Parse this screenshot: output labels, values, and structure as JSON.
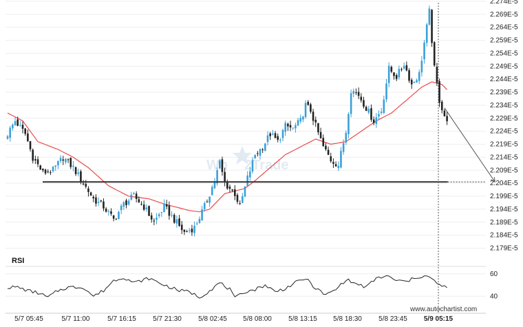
{
  "chart_data": [
    {
      "type": "candlestick",
      "title": "",
      "ylabel": "",
      "ylim": [
        2.1765e-05,
        2.2745e-05
      ],
      "y_tick_labels": [
        "2.274E-5",
        "2.269E-5",
        "2.264E-5",
        "2.259E-5",
        "2.254E-5",
        "2.249E-5",
        "2.244E-5",
        "2.239E-5",
        "2.234E-5",
        "2.229E-5",
        "2.224E-5",
        "2.219E-5",
        "2.214E-5",
        "2.209E-5",
        "2.204E-5",
        "2.199E-5",
        "2.194E-5",
        "2.189E-5",
        "2.184E-5",
        "2.179E-5"
      ],
      "y_tick_values": [
        2.274e-05,
        2.269e-05,
        2.264e-05,
        2.259e-05,
        2.254e-05,
        2.249e-05,
        2.244e-05,
        2.239e-05,
        2.234e-05,
        2.229e-05,
        2.224e-05,
        2.219e-05,
        2.214e-05,
        2.209e-05,
        2.204e-05,
        2.199e-05,
        2.194e-05,
        2.189e-05,
        2.184e-05,
        2.179e-05
      ],
      "x_tick_labels": [
        "5/7 05:45",
        "5/7 11:00",
        "5/7 16:15",
        "5/7 21:30",
        "5/8 02:45",
        "5/8 08:00",
        "5/8 13:15",
        "5/8 18:30",
        "5/8 23:45",
        "5/9 05:15"
      ],
      "current_time_label": "5/9 05:15",
      "support_level": 2.2045e-05,
      "support_label": "2.204E-5",
      "colors": {
        "bull": "#3a9fd8",
        "bear": "#222222",
        "ma": "#e8494a",
        "level": "#333333",
        "grid": "#eeeeee"
      },
      "anchors_close": [
        [
          0,
          2.223e-05
        ],
        [
          3,
          2.228e-05
        ],
        [
          7,
          2.223e-05
        ],
        [
          10,
          2.214e-05
        ],
        [
          14,
          2.208e-05
        ],
        [
          18,
          2.209e-05
        ],
        [
          22,
          2.214e-05
        ],
        [
          26,
          2.21e-05
        ],
        [
          30,
          2.204e-05
        ],
        [
          34,
          2.198e-05
        ],
        [
          38,
          2.195e-05
        ],
        [
          42,
          2.19e-05
        ],
        [
          46,
          2.196e-05
        ],
        [
          50,
          2.199e-05
        ],
        [
          54,
          2.195e-05
        ],
        [
          58,
          2.189e-05
        ],
        [
          62,
          2.195e-05
        ],
        [
          66,
          2.19e-05
        ],
        [
          70,
          2.185e-05
        ],
        [
          74,
          2.187e-05
        ],
        [
          78,
          2.195e-05
        ],
        [
          82,
          2.205e-05
        ],
        [
          84,
          2.212e-05
        ],
        [
          86,
          2.204e-05
        ],
        [
          90,
          2.2e-05
        ],
        [
          92,
          2.195e-05
        ],
        [
          95,
          2.206e-05
        ],
        [
          98,
          2.215e-05
        ],
        [
          101,
          2.218e-05
        ],
        [
          104,
          2.223e-05
        ],
        [
          107,
          2.22e-05
        ],
        [
          110,
          2.226e-05
        ],
        [
          113,
          2.225e-05
        ],
        [
          116,
          2.228e-05
        ],
        [
          118,
          2.234e-05
        ],
        [
          120,
          2.232e-05
        ],
        [
          122,
          2.226e-05
        ],
        [
          125,
          2.218e-05
        ],
        [
          128,
          2.213e-05
        ],
        [
          131,
          2.211e-05
        ],
        [
          134,
          2.224e-05
        ],
        [
          136,
          2.24e-05
        ],
        [
          139,
          2.238e-05
        ],
        [
          142,
          2.233e-05
        ],
        [
          145,
          2.228e-05
        ],
        [
          148,
          2.232e-05
        ],
        [
          151,
          2.248e-05
        ],
        [
          154,
          2.245e-05
        ],
        [
          157,
          2.25e-05
        ],
        [
          160,
          2.242e-05
        ],
        [
          163,
          2.246e-05
        ],
        [
          166,
          2.264e-05
        ],
        [
          167,
          2.27e-05
        ],
        [
          169,
          2.248e-05
        ],
        [
          171,
          2.236e-05
        ],
        [
          173,
          2.23e-05
        ],
        [
          174,
          2.227e-05
        ]
      ],
      "ma_anchors": [
        [
          0,
          2.231e-05
        ],
        [
          6,
          2.228e-05
        ],
        [
          12,
          2.22e-05
        ],
        [
          20,
          2.217e-05
        ],
        [
          26,
          2.214e-05
        ],
        [
          32,
          2.21e-05
        ],
        [
          40,
          2.203e-05
        ],
        [
          48,
          2.199e-05
        ],
        [
          56,
          2.198e-05
        ],
        [
          62,
          2.196e-05
        ],
        [
          72,
          2.1935e-05
        ],
        [
          76,
          2.193e-05
        ],
        [
          80,
          2.194e-05
        ],
        [
          86,
          2.2e-05
        ],
        [
          90,
          2.201e-05
        ],
        [
          94,
          2.202e-05
        ],
        [
          98,
          2.205e-05
        ],
        [
          104,
          2.21e-05
        ],
        [
          110,
          2.215e-05
        ],
        [
          116,
          2.218e-05
        ],
        [
          122,
          2.221e-05
        ],
        [
          128,
          2.219e-05
        ],
        [
          134,
          2.22e-05
        ],
        [
          140,
          2.224e-05
        ],
        [
          146,
          2.228e-05
        ],
        [
          152,
          2.231e-05
        ],
        [
          158,
          2.236e-05
        ],
        [
          164,
          2.241e-05
        ],
        [
          168,
          2.243e-05
        ],
        [
          172,
          2.242e-05
        ],
        [
          174,
          2.24e-05
        ]
      ],
      "projection": {
        "from": [
          173,
          2.233e-05
        ],
        "to": [
          193,
          2.2045e-05
        ]
      }
    },
    {
      "type": "line",
      "title": "RSI",
      "ylim": [
        34,
        66
      ],
      "y_tick_labels": [
        "60",
        "40"
      ],
      "y_tick_values": [
        60,
        40
      ],
      "rsi_anchors": [
        [
          0,
          48
        ],
        [
          4,
          48
        ],
        [
          8,
          45
        ],
        [
          12,
          43
        ],
        [
          16,
          39
        ],
        [
          20,
          45
        ],
        [
          24,
          48
        ],
        [
          30,
          48
        ],
        [
          34,
          40
        ],
        [
          38,
          45
        ],
        [
          42,
          54
        ],
        [
          46,
          57
        ],
        [
          50,
          52
        ],
        [
          56,
          56
        ],
        [
          62,
          50
        ],
        [
          68,
          45
        ],
        [
          72,
          44
        ],
        [
          76,
          39
        ],
        [
          80,
          45
        ],
        [
          84,
          52
        ],
        [
          88,
          46
        ],
        [
          90,
          38
        ],
        [
          94,
          44
        ],
        [
          98,
          46
        ],
        [
          102,
          50
        ],
        [
          106,
          44
        ],
        [
          110,
          47
        ],
        [
          114,
          52
        ],
        [
          118,
          56
        ],
        [
          122,
          47
        ],
        [
          126,
          41
        ],
        [
          130,
          46
        ],
        [
          134,
          55
        ],
        [
          138,
          51
        ],
        [
          142,
          48
        ],
        [
          146,
          56
        ],
        [
          150,
          58
        ],
        [
          154,
          54
        ],
        [
          158,
          53
        ],
        [
          162,
          57
        ],
        [
          166,
          58
        ],
        [
          170,
          52
        ],
        [
          172,
          48
        ],
        [
          174,
          49
        ]
      ]
    }
  ],
  "watermark": {
    "text_a": "Wh",
    "text_b": "2Trade"
  },
  "footer": {
    "brand": "www.autochartist.com"
  }
}
